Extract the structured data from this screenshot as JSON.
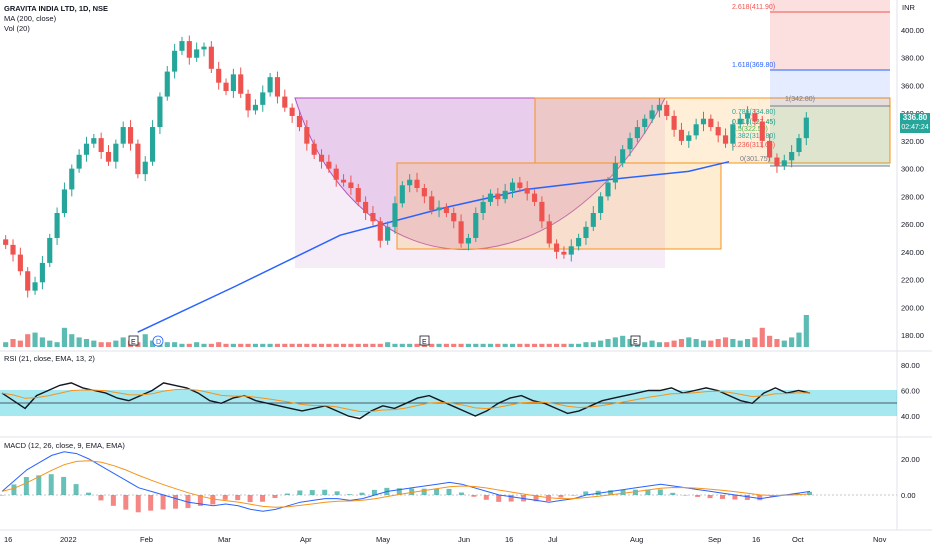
{
  "header": {
    "symbol_line": "GRAVITA INDIA LTD, 1D, NSE",
    "ma_line": "MA (200, close)",
    "vol_line": "Vol (20)",
    "rsi_line": "RSI (21, close, EMA, 13, 2)",
    "macd_line": "MACD (12, 26, close, 9, EMA, EMA)"
  },
  "price_axis": {
    "currency": "INR",
    "ticks": [
      "400.00",
      "380.00",
      "360.00",
      "340.00",
      "320.00",
      "300.00",
      "280.00",
      "260.00",
      "240.00",
      "220.00",
      "200.00",
      "180.00"
    ],
    "last_price": "336.80",
    "countdown": "02:47:24"
  },
  "rsi_axis": {
    "ticks": [
      "80.00",
      "60.00",
      "40.00"
    ]
  },
  "macd_axis": {
    "ticks": [
      "20.00",
      "0.00"
    ]
  },
  "time_axis": {
    "labels": [
      "16",
      "2022",
      "Feb",
      "Mar",
      "Apr",
      "May",
      "Jun",
      "16",
      "Jul",
      "Aug",
      "Sep",
      "16",
      "Oct",
      "Nov"
    ]
  },
  "fib_labels": [
    {
      "text": "2.618(411.90)",
      "color": "#ef5350"
    },
    {
      "text": "1.618(369.80)",
      "color": "#2962ff"
    },
    {
      "text": "1(342.80)",
      "color": "#787b86"
    },
    {
      "text": "0.786(334.80)",
      "color": "#26a69a"
    },
    {
      "text": "0.618(327.45)",
      "color": "#089981"
    },
    {
      "text": "0.5(322.50)",
      "color": "#4caf50"
    },
    {
      "text": "0.382(317.80)",
      "color": "#26a69a"
    },
    {
      "text": "0.236(311.65)",
      "color": "#ef5350"
    },
    {
      "text": "0(301.75)",
      "color": "#787b86"
    }
  ],
  "events": [
    "E",
    "D",
    "E",
    "E"
  ],
  "colors": {
    "up": "#26a69a",
    "down": "#ef5350",
    "ma": "#2962ff",
    "orange": "#f7931a",
    "rsi_band": "#00bcd4",
    "fib_red": "#ef5350"
  },
  "chart_data": [
    {
      "type": "candlestick",
      "title": "GRAVITA INDIA LTD, 1D, NSE",
      "ylim": [
        170,
        420
      ],
      "close_series": [
        245,
        238,
        226,
        212,
        218,
        232,
        250,
        268,
        285,
        300,
        310,
        318,
        322,
        312,
        305,
        318,
        330,
        318,
        296,
        305,
        330,
        352,
        370,
        385,
        392,
        380,
        386,
        388,
        372,
        362,
        356,
        368,
        354,
        342,
        346,
        355,
        366,
        352,
        344,
        338,
        330,
        318,
        310,
        305,
        300,
        292,
        290,
        286,
        276,
        268,
        262,
        248,
        258,
        275,
        288,
        292,
        286,
        280,
        270,
        272,
        268,
        262,
        246,
        250,
        268,
        276,
        282,
        278,
        284,
        290,
        286,
        282,
        276,
        262,
        246,
        240,
        238,
        244,
        250,
        258,
        268,
        280,
        290,
        304,
        314,
        322,
        330,
        336,
        342,
        346,
        338,
        328,
        320,
        324,
        332,
        336,
        330,
        324,
        318,
        332,
        336,
        340,
        334,
        320,
        308,
        302,
        306,
        312,
        322,
        336.8
      ],
      "ma200": {
        "name": "MA (200, close)",
        "points": [
          [
            0.17,
            182
          ],
          [
            0.29,
            215
          ],
          [
            0.42,
            252
          ],
          [
            0.55,
            272
          ],
          [
            0.65,
            285
          ],
          [
            0.75,
            292
          ],
          [
            0.85,
            298
          ],
          [
            0.9,
            305
          ]
        ]
      },
      "last_price": 336.8
    },
    {
      "type": "bar",
      "name": "Vol (20)",
      "values": [
        3,
        5,
        4,
        8,
        9,
        6,
        4,
        3,
        12,
        8,
        6,
        5,
        4,
        3,
        3,
        4,
        6,
        4,
        3,
        8,
        4,
        3,
        3,
        3,
        2,
        2,
        3,
        2,
        2,
        3,
        2,
        2,
        2,
        2,
        2,
        2,
        2,
        2,
        2,
        2,
        2,
        2,
        2,
        2,
        2,
        2,
        2,
        2,
        2,
        2,
        2,
        2,
        3,
        2,
        2,
        2,
        2,
        2,
        2,
        2,
        2,
        2,
        2,
        2,
        2,
        2,
        2,
        2,
        2,
        2,
        2,
        2,
        2,
        2,
        2,
        2,
        2,
        2,
        2,
        3,
        3,
        4,
        5,
        6,
        7,
        5,
        4,
        3,
        4,
        3,
        3,
        4,
        5,
        6,
        5,
        4,
        4,
        5,
        6,
        5,
        4,
        5,
        6,
        12,
        7,
        5,
        4,
        6,
        9,
        20
      ]
    },
    {
      "type": "line",
      "name": "RSI (21, close, EMA, 13, 2)",
      "ylim": [
        30,
        90
      ],
      "band": [
        40,
        60
      ],
      "values": [
        58,
        52,
        46,
        56,
        60,
        64,
        66,
        62,
        60,
        58,
        54,
        52,
        56,
        60,
        66,
        64,
        62,
        58,
        52,
        50,
        54,
        56,
        52,
        50,
        48,
        46,
        44,
        46,
        48,
        44,
        40,
        38,
        44,
        48,
        46,
        50,
        54,
        56,
        52,
        48,
        44,
        40,
        44,
        50,
        54,
        56,
        52,
        50,
        46,
        42,
        44,
        48,
        52,
        54,
        56,
        58,
        60,
        60,
        62,
        58,
        60,
        62,
        60,
        56,
        52,
        50,
        58,
        62,
        58,
        60,
        58
      ]
    },
    {
      "type": "line",
      "name": "MACD (12, 26, close, 9, EMA, EMA)",
      "ylim": [
        -12,
        28
      ],
      "values": [
        2,
        8,
        14,
        18,
        22,
        24,
        23,
        20,
        16,
        12,
        8,
        4,
        2,
        0,
        -2,
        -4,
        -5,
        -6,
        -5,
        -6,
        -8,
        -9,
        -8,
        -6,
        -4,
        -3,
        -2,
        -2,
        -3,
        -2,
        0,
        2,
        3,
        4,
        5,
        6,
        7,
        6,
        4,
        2,
        0,
        -1,
        -2,
        -3,
        -4,
        -3,
        -2,
        0,
        1,
        2,
        3,
        4,
        5,
        6,
        5,
        4,
        3,
        2,
        1,
        0,
        -1,
        -2,
        -1,
        0,
        1,
        2
      ]
    }
  ]
}
